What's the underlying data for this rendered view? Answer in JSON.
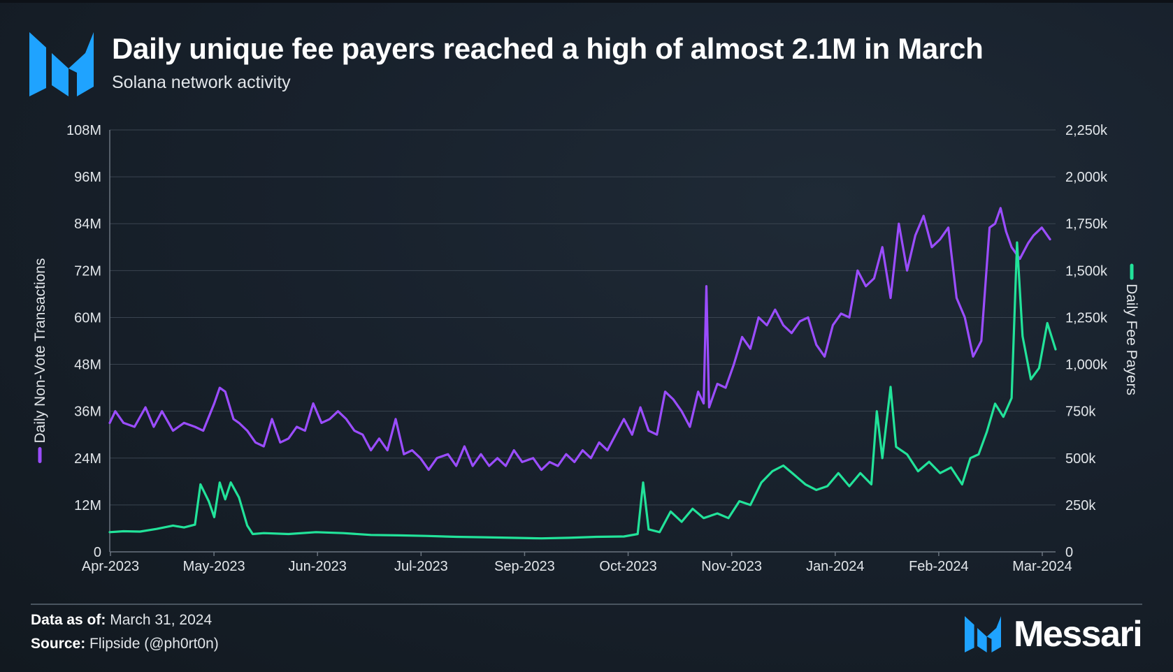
{
  "header": {
    "title": "Daily unique fee payers reached a high of almost 2.1M in March",
    "subtitle": "Solana network activity"
  },
  "footer": {
    "data_as_of_label": "Data as of:",
    "data_as_of_value": "March 31, 2024",
    "source_label": "Source:",
    "source_value": "Flipside (@ph0rt0n)",
    "brand": "Messari"
  },
  "colors": {
    "tx_series": "#9b4dff",
    "fee_series": "#22e39a",
    "brand_blue": "#1fa3ff"
  },
  "chart_data": {
    "type": "line",
    "x_tick_labels": [
      "Apr-2023",
      "May-2023",
      "Jun-2023",
      "Jul-2023",
      "Sep-2023",
      "Oct-2023",
      "Nov-2023",
      "Jan-2024",
      "Feb-2024",
      "Mar-2024"
    ],
    "y_left": {
      "label": "Daily Non-Vote Transactions",
      "ticks": [
        "0",
        "12M",
        "24M",
        "36M",
        "48M",
        "60M",
        "72M",
        "84M",
        "96M",
        "108M"
      ],
      "range": [
        0,
        108
      ]
    },
    "y_right": {
      "label": "Daily Fee Payers",
      "ticks": [
        "0",
        "250k",
        "500k",
        "750k",
        "1,000k",
        "1,250k",
        "1,500k",
        "1,750k",
        "2,000k",
        "2,250k"
      ],
      "range": [
        0,
        2250
      ]
    },
    "grid": true,
    "series": [
      {
        "name": "Daily Non-Vote Transactions",
        "axis": "left",
        "points": [
          [
            "2023-04-01",
            33
          ],
          [
            "2023-04-03",
            36
          ],
          [
            "2023-04-06",
            33
          ],
          [
            "2023-04-10",
            32
          ],
          [
            "2023-04-14",
            37
          ],
          [
            "2023-04-17",
            32
          ],
          [
            "2023-04-20",
            36
          ],
          [
            "2023-04-24",
            31
          ],
          [
            "2023-04-28",
            33
          ],
          [
            "2023-05-02",
            32
          ],
          [
            "2023-05-05",
            31
          ],
          [
            "2023-05-09",
            38
          ],
          [
            "2023-05-11",
            42
          ],
          [
            "2023-05-13",
            41
          ],
          [
            "2023-05-16",
            34
          ],
          [
            "2023-05-18",
            33
          ],
          [
            "2023-05-21",
            31
          ],
          [
            "2023-05-24",
            28
          ],
          [
            "2023-05-27",
            27
          ],
          [
            "2023-05-30",
            34
          ],
          [
            "2023-06-02",
            28
          ],
          [
            "2023-06-05",
            29
          ],
          [
            "2023-06-08",
            32
          ],
          [
            "2023-06-11",
            31
          ],
          [
            "2023-06-14",
            38
          ],
          [
            "2023-06-17",
            33
          ],
          [
            "2023-06-20",
            34
          ],
          [
            "2023-06-23",
            36
          ],
          [
            "2023-06-26",
            34
          ],
          [
            "2023-06-29",
            31
          ],
          [
            "2023-07-02",
            30
          ],
          [
            "2023-07-05",
            26
          ],
          [
            "2023-07-08",
            29
          ],
          [
            "2023-07-11",
            26
          ],
          [
            "2023-07-14",
            34
          ],
          [
            "2023-07-17",
            25
          ],
          [
            "2023-07-20",
            26
          ],
          [
            "2023-07-23",
            24
          ],
          [
            "2023-07-26",
            21
          ],
          [
            "2023-07-29",
            24
          ],
          [
            "2023-08-02",
            25
          ],
          [
            "2023-08-05",
            22
          ],
          [
            "2023-08-08",
            27
          ],
          [
            "2023-08-11",
            22
          ],
          [
            "2023-08-14",
            25
          ],
          [
            "2023-08-17",
            22
          ],
          [
            "2023-08-20",
            24
          ],
          [
            "2023-08-23",
            22
          ],
          [
            "2023-08-26",
            26
          ],
          [
            "2023-08-29",
            23
          ],
          [
            "2023-09-02",
            24
          ],
          [
            "2023-09-05",
            21
          ],
          [
            "2023-09-08",
            23
          ],
          [
            "2023-09-11",
            22
          ],
          [
            "2023-09-14",
            25
          ],
          [
            "2023-09-17",
            23
          ],
          [
            "2023-09-20",
            26
          ],
          [
            "2023-09-23",
            24
          ],
          [
            "2023-09-26",
            28
          ],
          [
            "2023-09-29",
            26
          ],
          [
            "2023-10-02",
            30
          ],
          [
            "2023-10-05",
            34
          ],
          [
            "2023-10-08",
            30
          ],
          [
            "2023-10-11",
            37
          ],
          [
            "2023-10-14",
            31
          ],
          [
            "2023-10-17",
            30
          ],
          [
            "2023-10-20",
            41
          ],
          [
            "2023-10-23",
            39
          ],
          [
            "2023-10-26",
            36
          ],
          [
            "2023-10-29",
            32
          ],
          [
            "2023-11-01",
            41
          ],
          [
            "2023-11-03",
            38
          ],
          [
            "2023-11-04",
            68
          ],
          [
            "2023-11-05",
            37
          ],
          [
            "2023-11-08",
            43
          ],
          [
            "2023-11-11",
            42
          ],
          [
            "2023-11-14",
            48
          ],
          [
            "2023-11-17",
            55
          ],
          [
            "2023-11-20",
            52
          ],
          [
            "2023-11-23",
            60
          ],
          [
            "2023-11-26",
            58
          ],
          [
            "2023-11-29",
            62
          ],
          [
            "2023-12-02",
            58
          ],
          [
            "2023-12-05",
            56
          ],
          [
            "2023-12-08",
            59
          ],
          [
            "2023-12-11",
            60
          ],
          [
            "2023-12-14",
            53
          ],
          [
            "2023-12-17",
            50
          ],
          [
            "2023-12-20",
            58
          ],
          [
            "2023-12-23",
            61
          ],
          [
            "2023-12-26",
            60
          ],
          [
            "2023-12-29",
            72
          ],
          [
            "2024-01-01",
            68
          ],
          [
            "2024-01-04",
            70
          ],
          [
            "2024-01-07",
            78
          ],
          [
            "2024-01-10",
            65
          ],
          [
            "2024-01-13",
            84
          ],
          [
            "2024-01-16",
            72
          ],
          [
            "2024-01-19",
            81
          ],
          [
            "2024-01-22",
            86
          ],
          [
            "2024-01-25",
            78
          ],
          [
            "2024-01-28",
            80
          ],
          [
            "2024-01-31",
            83
          ],
          [
            "2024-02-03",
            65
          ],
          [
            "2024-02-06",
            60
          ],
          [
            "2024-02-09",
            50
          ],
          [
            "2024-02-12",
            54
          ],
          [
            "2024-02-15",
            83
          ],
          [
            "2024-02-17",
            84
          ],
          [
            "2024-02-19",
            88
          ],
          [
            "2024-02-21",
            82
          ],
          [
            "2024-02-23",
            78
          ],
          [
            "2024-02-26",
            75
          ],
          [
            "2024-02-29",
            79
          ],
          [
            "2024-03-02",
            81
          ],
          [
            "2024-03-05",
            83
          ],
          [
            "2024-03-08",
            80
          ]
        ]
      },
      {
        "name": "Daily Fee Payers",
        "axis": "right",
        "points": [
          [
            "2023-04-01",
            105
          ],
          [
            "2023-04-06",
            110
          ],
          [
            "2023-04-12",
            108
          ],
          [
            "2023-04-18",
            122
          ],
          [
            "2023-04-24",
            140
          ],
          [
            "2023-04-28",
            130
          ],
          [
            "2023-05-02",
            145
          ],
          [
            "2023-05-04",
            360
          ],
          [
            "2023-05-07",
            270
          ],
          [
            "2023-05-09",
            185
          ],
          [
            "2023-05-11",
            370
          ],
          [
            "2023-05-13",
            280
          ],
          [
            "2023-05-15",
            370
          ],
          [
            "2023-05-18",
            290
          ],
          [
            "2023-05-21",
            140
          ],
          [
            "2023-05-23",
            95
          ],
          [
            "2023-05-27",
            100
          ],
          [
            "2023-06-05",
            95
          ],
          [
            "2023-06-15",
            105
          ],
          [
            "2023-06-25",
            100
          ],
          [
            "2023-07-05",
            90
          ],
          [
            "2023-07-15",
            88
          ],
          [
            "2023-07-25",
            85
          ],
          [
            "2023-08-05",
            80
          ],
          [
            "2023-08-15",
            78
          ],
          [
            "2023-08-25",
            75
          ],
          [
            "2023-09-05",
            72
          ],
          [
            "2023-09-15",
            75
          ],
          [
            "2023-09-25",
            80
          ],
          [
            "2023-10-05",
            82
          ],
          [
            "2023-10-10",
            95
          ],
          [
            "2023-10-12",
            370
          ],
          [
            "2023-10-14",
            120
          ],
          [
            "2023-10-18",
            105
          ],
          [
            "2023-10-22",
            215
          ],
          [
            "2023-10-26",
            160
          ],
          [
            "2023-10-30",
            230
          ],
          [
            "2023-11-03",
            180
          ],
          [
            "2023-11-08",
            205
          ],
          [
            "2023-11-12",
            180
          ],
          [
            "2023-11-16",
            270
          ],
          [
            "2023-11-20",
            250
          ],
          [
            "2023-11-24",
            370
          ],
          [
            "2023-11-28",
            430
          ],
          [
            "2023-12-02",
            460
          ],
          [
            "2023-12-06",
            410
          ],
          [
            "2023-12-10",
            360
          ],
          [
            "2023-12-14",
            330
          ],
          [
            "2023-12-18",
            350
          ],
          [
            "2023-12-22",
            420
          ],
          [
            "2023-12-26",
            350
          ],
          [
            "2023-12-30",
            420
          ],
          [
            "2024-01-03",
            360
          ],
          [
            "2024-01-05",
            750
          ],
          [
            "2024-01-07",
            500
          ],
          [
            "2024-01-10",
            880
          ],
          [
            "2024-01-12",
            560
          ],
          [
            "2024-01-16",
            520
          ],
          [
            "2024-01-20",
            430
          ],
          [
            "2024-01-24",
            480
          ],
          [
            "2024-01-28",
            420
          ],
          [
            "2024-02-01",
            450
          ],
          [
            "2024-02-05",
            360
          ],
          [
            "2024-02-08",
            500
          ],
          [
            "2024-02-11",
            520
          ],
          [
            "2024-02-14",
            640
          ],
          [
            "2024-02-17",
            790
          ],
          [
            "2024-02-20",
            720
          ],
          [
            "2024-02-23",
            820
          ],
          [
            "2024-02-25",
            1650
          ],
          [
            "2024-02-27",
            1150
          ],
          [
            "2024-03-01",
            920
          ],
          [
            "2024-03-04",
            980
          ],
          [
            "2024-03-07",
            1220
          ],
          [
            "2024-03-10",
            1080
          ]
        ]
      }
    ]
  }
}
